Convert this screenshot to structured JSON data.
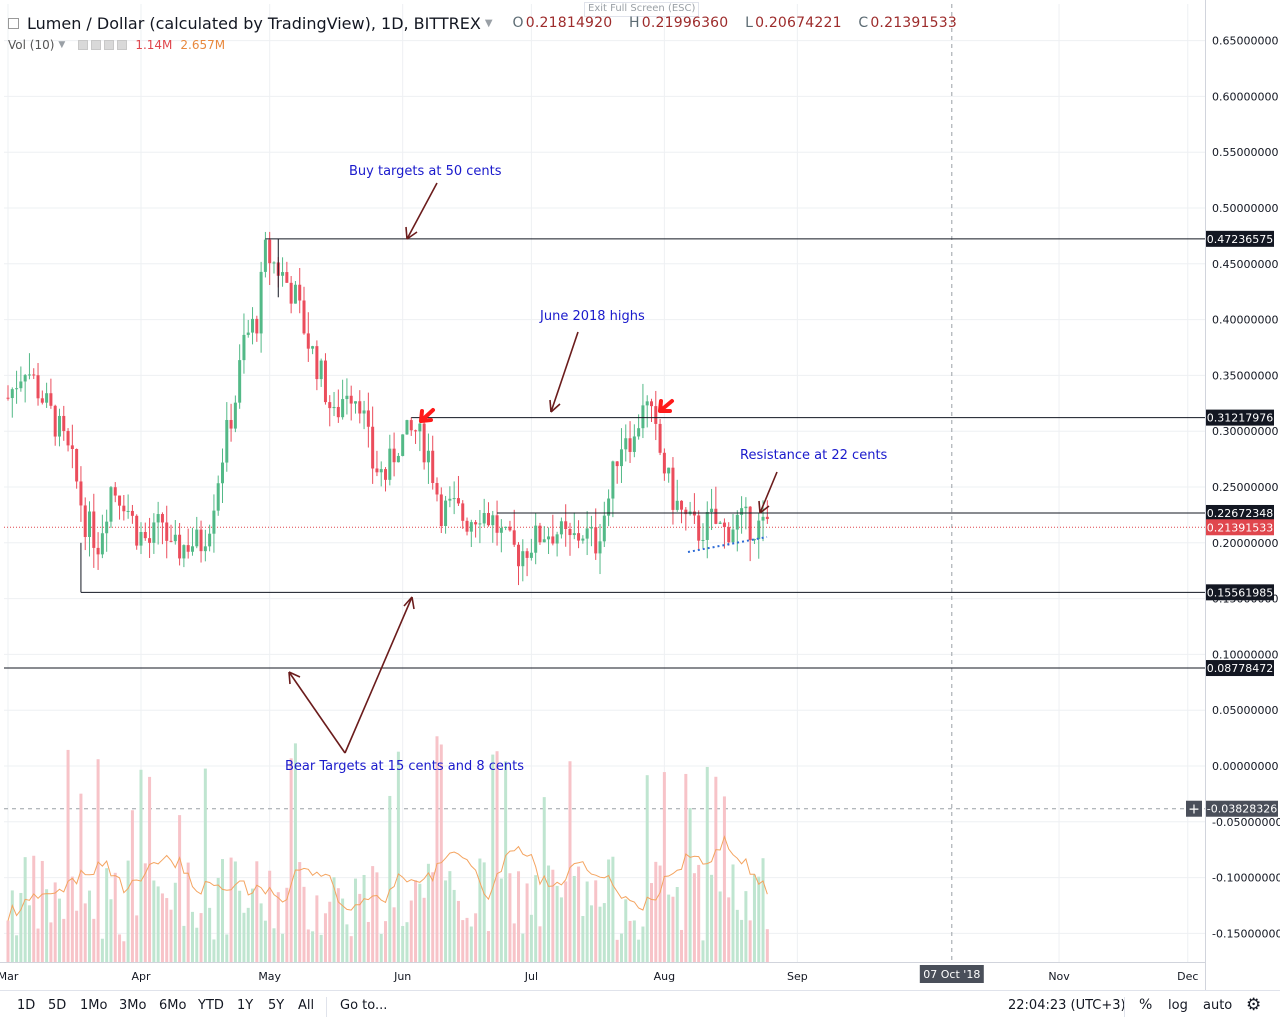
{
  "header": {
    "title": "Lumen / Dollar (calculated by TradingView), 1D, BITTREX",
    "ohlc": {
      "o": "0.21814920",
      "h": "0.21996360",
      "l": "0.20674221",
      "c": "0.21391533"
    },
    "ohlc_keys": {
      "o": "O",
      "h": "H",
      "l": "L",
      "c": "C"
    }
  },
  "volume_legend": {
    "label": "Vol (10)",
    "value1": "1.14M",
    "value2": "2.657M"
  },
  "exit_fullscreen": "Exit Full Screen (ESC)",
  "chart_data": {
    "type": "candlestick",
    "y_ticks": [
      "0.65000000",
      "0.60000000",
      "0.55000000",
      "0.50000000",
      "0.45000000",
      "0.40000000",
      "0.35000000",
      "0.30000000",
      "0.25000000",
      "0.20000000",
      "0.15000000",
      "0.10000000",
      "0.05000000",
      "0.00000000",
      "-0.05000000",
      "-0.10000000",
      "-0.15000000"
    ],
    "y_tick_values": [
      0.65,
      0.6,
      0.55,
      0.5,
      0.45,
      0.4,
      0.35,
      0.3,
      0.25,
      0.2,
      0.15,
      0.1,
      0.05,
      0.0,
      -0.05,
      -0.1,
      -0.15
    ],
    "ylim": [
      -0.17,
      0.68
    ],
    "x_months": [
      {
        "label": "Mar",
        "day": 0
      },
      {
        "label": "Apr",
        "day": 31
      },
      {
        "label": "May",
        "day": 61
      },
      {
        "label": "Jun",
        "day": 92
      },
      {
        "label": "Jul",
        "day": 122
      },
      {
        "label": "Aug",
        "day": 153
      },
      {
        "label": "Sep",
        "day": 184
      },
      {
        "label": "Nov",
        "day": 245
      },
      {
        "label": "Dec",
        "day": 275
      }
    ],
    "x_highlight": {
      "label": "07 Oct '18",
      "day": 220
    },
    "horizontal_levels": [
      {
        "value": 0.47236575,
        "label": "0.47236575",
        "from_day": 60
      },
      {
        "value": 0.31217976,
        "label": "0.31217976",
        "from_day": 94
      },
      {
        "value": 0.22672348,
        "label": "0.22672348",
        "from_day": 114
      },
      {
        "value": 0.15561985,
        "label": "0.15561985",
        "from_day": 17
      },
      {
        "value": 0.08778472,
        "label": "0.08778472",
        "from_day": -1
      }
    ],
    "current_price": {
      "value": 0.21391533,
      "label": "0.21391533"
    },
    "crosshair": {
      "value": -0.03828326,
      "label": "-0.03828326"
    },
    "annotations": [
      "Buy targets at 50 cents",
      "June 2018 highs",
      "Resistance at 22 cents",
      "Bear Targets at 15 cents and 8 cents"
    ],
    "candles": [],
    "volume_max": 1.0
  },
  "timeframes": [
    "1D",
    "5D",
    "1Mo",
    "3Mo",
    "6Mo",
    "YTD",
    "1Y",
    "5Y",
    "All"
  ],
  "goto": "Go to...",
  "clock": "22:04:23 (UTC+3)",
  "scale_buttons": {
    "pct": "%",
    "log": "log",
    "auto": "auto"
  },
  "colors": {
    "up": "#53b987",
    "down": "#eb4d5c",
    "vol_up": "#bfe5d0",
    "vol_down": "#f7c3c8",
    "ma": "#f4a460",
    "annotation": "#1a1acc",
    "arrow": "#6b1c1c"
  }
}
